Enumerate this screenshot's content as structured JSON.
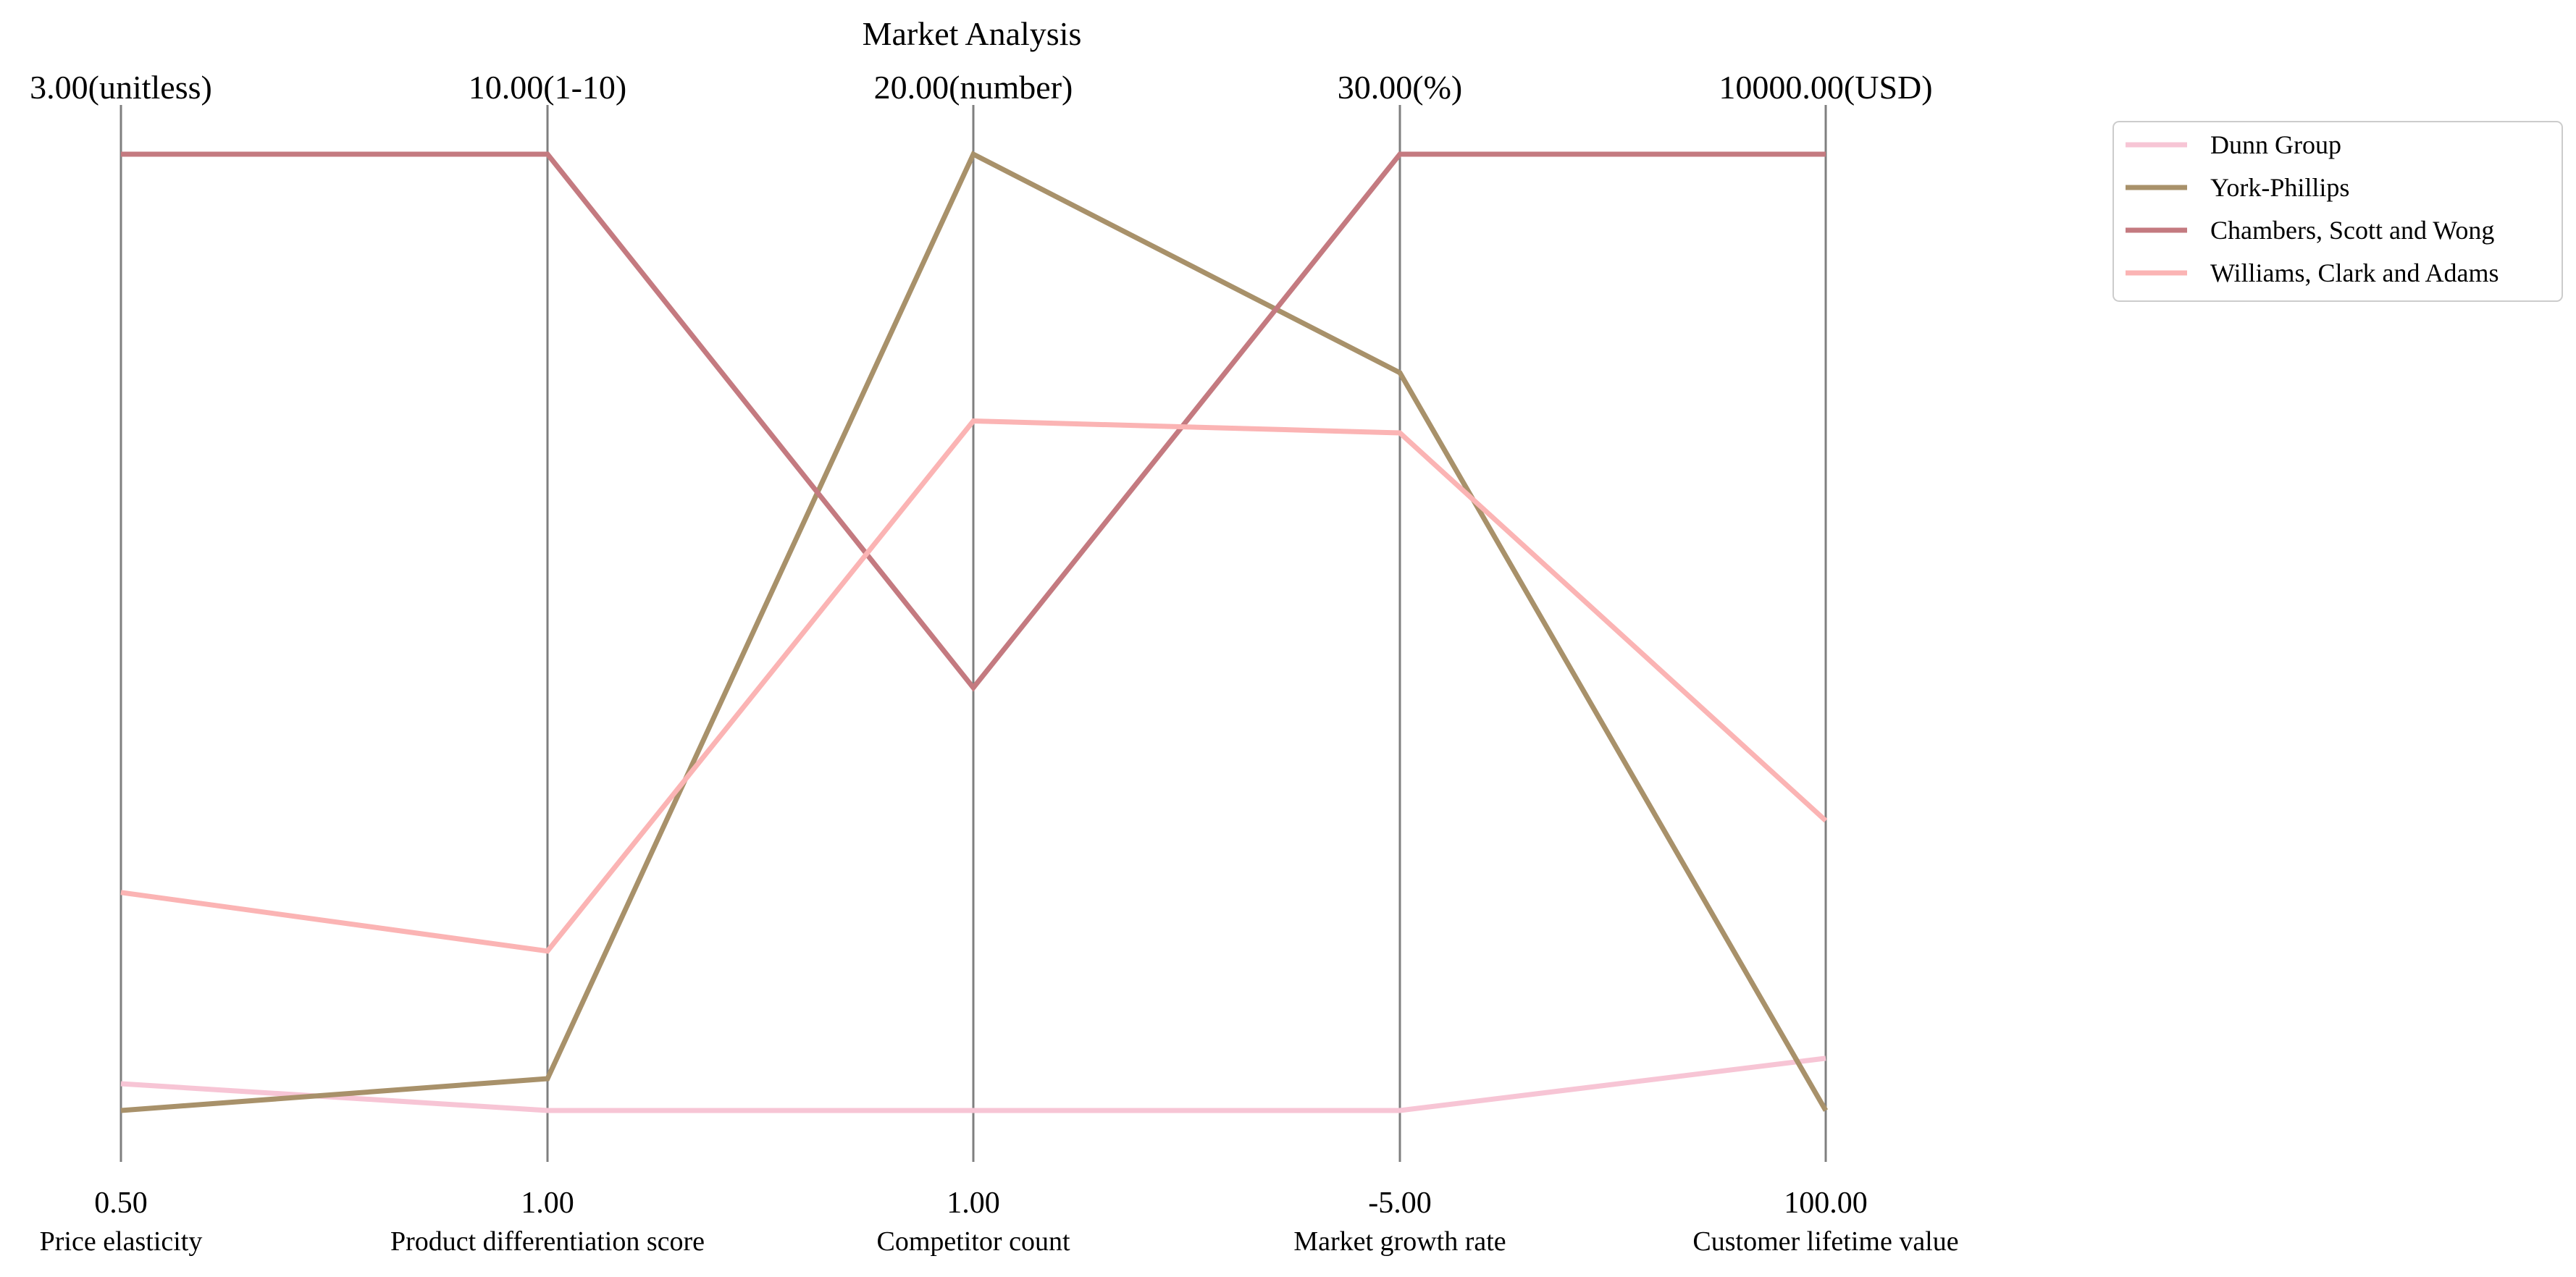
{
  "chart_data": {
    "type": "parallel_coordinates",
    "title": "Market Analysis",
    "axes": [
      {
        "label": "Price elasticity",
        "min": 0.5,
        "max": 3.0,
        "min_label": "0.50",
        "max_label": "3.00(unitless)"
      },
      {
        "label": "Product differentiation score",
        "min": 1.0,
        "max": 10.0,
        "min_label": "1.00",
        "max_label": "10.00(1-10)"
      },
      {
        "label": "Competitor count",
        "min": 1.0,
        "max": 20.0,
        "min_label": "1.00",
        "max_label": "20.00(number)"
      },
      {
        "label": "Market growth rate",
        "min": -5.0,
        "max": 30.0,
        "min_label": "-5.00",
        "max_label": "30.00(%)"
      },
      {
        "label": "Customer lifetime value",
        "min": 100.0,
        "max": 10000.0,
        "min_label": "100.00",
        "max_label": "10000.00(USD)"
      }
    ],
    "series": [
      {
        "name": "Dunn Group",
        "color": "#f7c5d5",
        "values": [
          0.57,
          1.0,
          1.0,
          -5.0,
          640
        ]
      },
      {
        "name": "York-Phillips",
        "color": "#a8916a",
        "values": [
          0.5,
          1.3,
          20.0,
          22.0,
          100
        ]
      },
      {
        "name": "Chambers, Scott and Wong",
        "color": "#c47a80",
        "values": [
          3.0,
          10.0,
          9.4,
          30.0,
          10000
        ]
      },
      {
        "name": "Williams, Clark and Adams",
        "color": "#fbb4b4",
        "values": [
          1.07,
          2.5,
          14.7,
          19.8,
          3100
        ]
      }
    ],
    "legend_position": "top-right",
    "grid": false
  }
}
